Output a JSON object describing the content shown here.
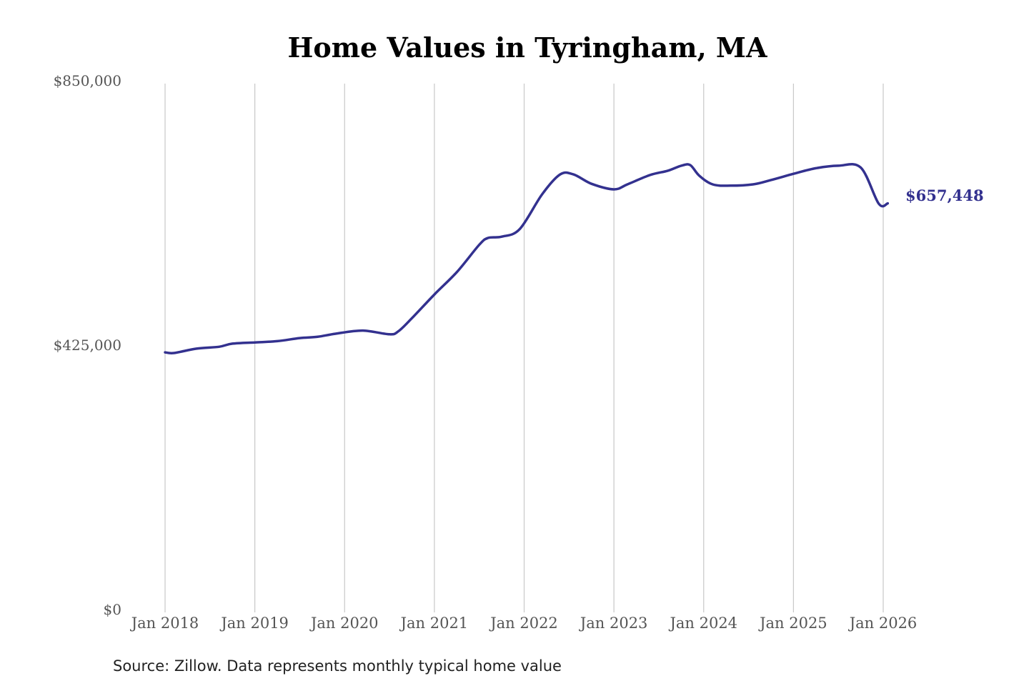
{
  "colors": {
    "series": "#33318f",
    "grid": "#c8c8c8",
    "tick_text": "#555555"
  },
  "chart_data": {
    "type": "line",
    "title": "Home Values in Tyringham, MA",
    "xlabel": "",
    "ylabel": "",
    "ylim": [
      0,
      850000
    ],
    "yticks": [
      {
        "value": 0,
        "label": "$0"
      },
      {
        "value": 425000,
        "label": "$425,000"
      },
      {
        "value": 850000,
        "label": "$850,000"
      }
    ],
    "xlim": [
      2018.0,
      2026.0
    ],
    "xticks": [
      {
        "value": 2018,
        "label": "Jan 2018"
      },
      {
        "value": 2019,
        "label": "Jan 2019"
      },
      {
        "value": 2020,
        "label": "Jan 2020"
      },
      {
        "value": 2021,
        "label": "Jan 2021"
      },
      {
        "value": 2022,
        "label": "Jan 2022"
      },
      {
        "value": 2023,
        "label": "Jan 2023"
      },
      {
        "value": 2024,
        "label": "Jan 2024"
      },
      {
        "value": 2025,
        "label": "Jan 2025"
      },
      {
        "value": 2026,
        "label": "Jan 2026"
      }
    ],
    "grid": "vertical",
    "series": [
      {
        "x": [
          2018.0,
          2018.1,
          2018.35,
          2018.6,
          2018.75,
          2019.0,
          2019.25,
          2019.5,
          2019.7,
          2019.9,
          2020.2,
          2020.5,
          2020.6,
          2020.75,
          2021.0,
          2021.25,
          2021.5,
          2021.6,
          2021.75,
          2021.95,
          2022.2,
          2022.4,
          2022.55,
          2022.75,
          2023.0,
          2023.15,
          2023.4,
          2023.6,
          2023.75,
          2023.85,
          2023.95,
          2024.1,
          2024.3,
          2024.55,
          2024.75,
          2025.0,
          2025.25,
          2025.5,
          2025.75,
          2025.95,
          2026.05
        ],
        "values": [
          418000,
          417000,
          424000,
          427000,
          432000,
          434000,
          436000,
          441000,
          443000,
          448000,
          453000,
          447000,
          452000,
          473000,
          511000,
          547000,
          591000,
          602000,
          604000,
          616000,
          672000,
          704000,
          704000,
          689000,
          680000,
          688000,
          703000,
          710000,
          718000,
          719000,
          702000,
          688000,
          686000,
          688000,
          695000,
          705000,
          714000,
          718000,
          715000,
          657000,
          657448
        ]
      }
    ],
    "end_label": "$657,448"
  },
  "source": "Source: Zillow. Data represents monthly typical home value"
}
